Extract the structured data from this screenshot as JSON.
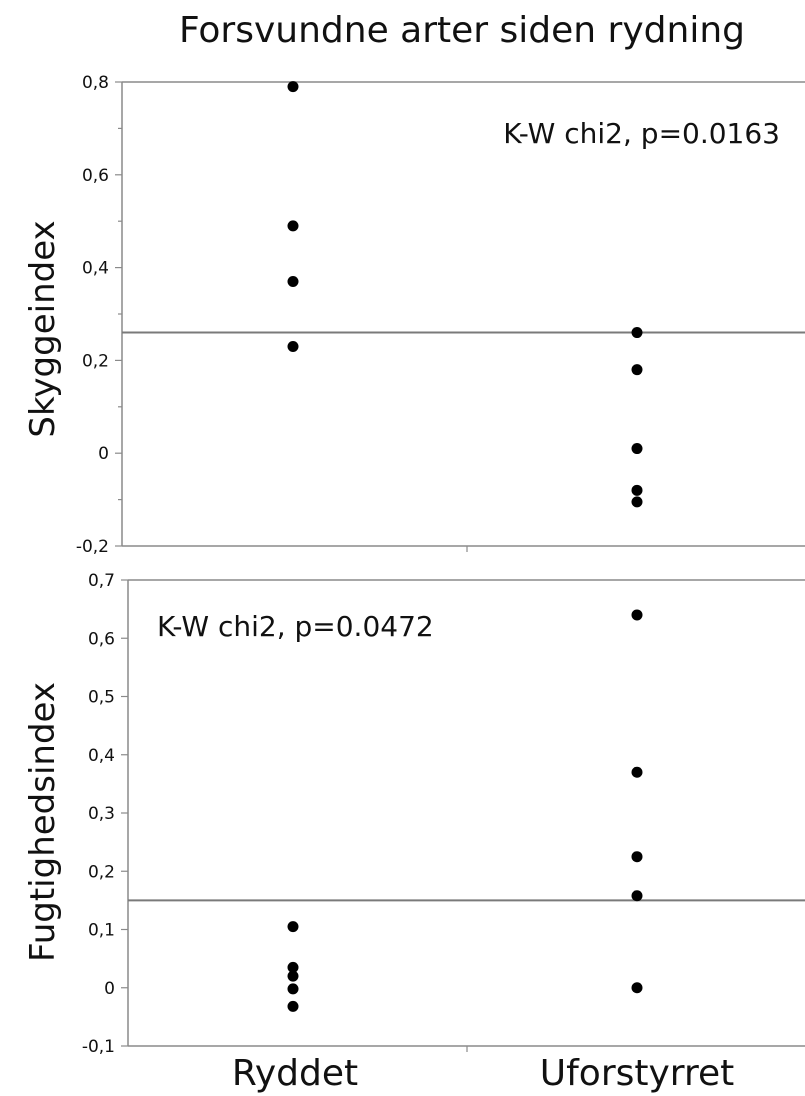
{
  "chart_data": {
    "title": "Forsvundne arter siden rydning",
    "categories": [
      "Ryddet",
      "Uforstyrret"
    ],
    "panels": [
      {
        "type": "scatter",
        "ylabel": "Skyggeindex",
        "ylim": [
          -0.2,
          0.8
        ],
        "ticks": [
          -0.2,
          0,
          0.2,
          0.4,
          0.6,
          0.8
        ],
        "tick_labels": [
          "-0,2",
          "0",
          "0,2",
          "0,4",
          "0,6",
          "0,8"
        ],
        "minor_ticks": true,
        "reference_line": 0.26,
        "annotation": "K-W chi2, p=0.0163",
        "series": [
          {
            "category": "Ryddet",
            "values": [
              0.79,
              0.49,
              0.37,
              0.23
            ]
          },
          {
            "category": "Uforstyrret",
            "values": [
              0.26,
              0.18,
              0.01,
              -0.08,
              -0.105
            ]
          }
        ]
      },
      {
        "type": "scatter",
        "ylabel": "Fugtighedsindex",
        "ylim": [
          -0.1,
          0.7
        ],
        "ticks": [
          -0.1,
          0,
          0.1,
          0.2,
          0.3,
          0.4,
          0.5,
          0.6,
          0.7
        ],
        "tick_labels": [
          "-0,1",
          "0",
          "0,1",
          "0,2",
          "0,3",
          "0,4",
          "0,5",
          "0,6",
          "0,7"
        ],
        "minor_ticks": false,
        "reference_line": 0.15,
        "annotation": "K-W chi2, p=0.0472",
        "series": [
          {
            "category": "Ryddet",
            "values": [
              0.105,
              0.035,
              0.02,
              -0.002,
              -0.032
            ]
          },
          {
            "category": "Uforstyrret",
            "values": [
              0.64,
              0.37,
              0.225,
              0.158,
              0
            ]
          }
        ]
      }
    ]
  }
}
